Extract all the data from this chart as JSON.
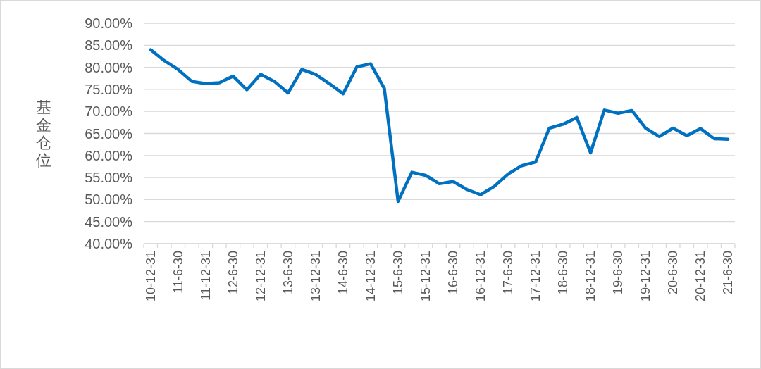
{
  "chart_data": {
    "type": "line",
    "ylabel": "基金仓位",
    "categories": [
      "10-12-31",
      null,
      "11-6-30",
      null,
      "11-12-31",
      null,
      "12-6-30",
      null,
      "12-12-31",
      null,
      "13-6-30",
      null,
      "13-12-31",
      null,
      "14-6-30",
      null,
      "14-12-31",
      null,
      "15-6-30",
      null,
      "15-12-31",
      null,
      "16-6-30",
      null,
      "16-12-31",
      null,
      "17-6-30",
      null,
      "17-12-31",
      null,
      "18-6-30",
      null,
      "18-12-31",
      null,
      "19-6-30",
      null,
      "19-12-31",
      null,
      "20-6-30",
      null,
      "20-12-31",
      null,
      "21-6-30"
    ],
    "series": [
      {
        "color": "#0070c0",
        "values": [
          84.0,
          81.5,
          79.5,
          76.8,
          76.3,
          76.5,
          78.0,
          74.9,
          78.4,
          76.8,
          74.2,
          79.5,
          78.4,
          76.3,
          74.0,
          80.1,
          80.8,
          75.2,
          49.6,
          56.2,
          55.5,
          53.6,
          54.1,
          52.3,
          51.1,
          53.0,
          55.8,
          57.7,
          58.5,
          66.2,
          67.1,
          68.6,
          60.6,
          70.3,
          69.6,
          70.2,
          66.2,
          64.3,
          66.2,
          64.5,
          66.1,
          63.8,
          63.7
        ]
      }
    ],
    "ylim": [
      40,
      90
    ],
    "yticks": [
      {
        "value": 40,
        "label": "40.00%"
      },
      {
        "value": 45,
        "label": "45.00%"
      },
      {
        "value": 50,
        "label": "50.00%"
      },
      {
        "value": 55,
        "label": "55.00%"
      },
      {
        "value": 60,
        "label": "60.00%"
      },
      {
        "value": 65,
        "label": "65.00%"
      },
      {
        "value": 70,
        "label": "70.00%"
      },
      {
        "value": 75,
        "label": "75.00%"
      },
      {
        "value": 80,
        "label": "80.00%"
      },
      {
        "value": 85,
        "label": "85.00%"
      },
      {
        "value": 90,
        "label": "90.00%"
      }
    ],
    "grid": "y",
    "marker": "none",
    "line_style": "solid"
  }
}
